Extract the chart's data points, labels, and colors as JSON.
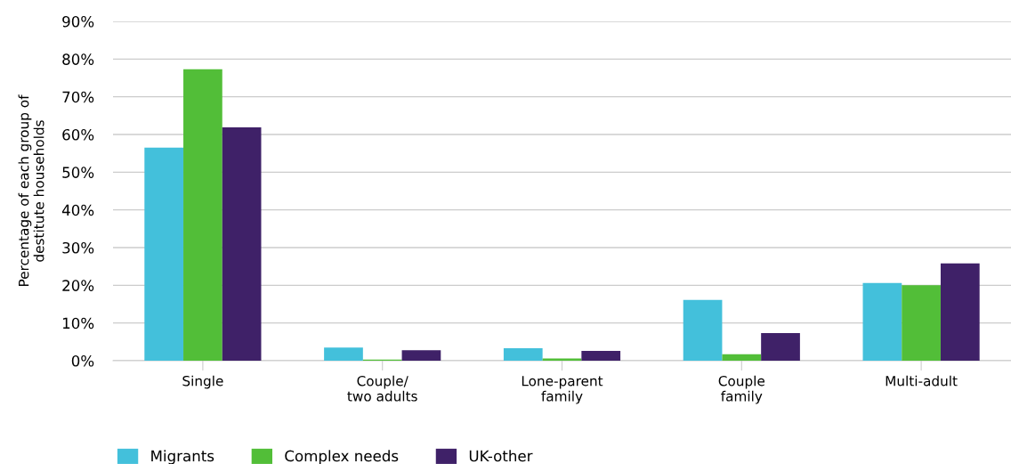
{
  "chart_data": {
    "type": "bar",
    "ylabel": "Percentage of each group of\ndestitute households",
    "categories": [
      "Single",
      "Couple/\ntwo adults",
      "Lone-parent\nfamily",
      "Couple\nfamily",
      "Multi-adult"
    ],
    "series": [
      {
        "name": "Migrants",
        "color": "#43c0db",
        "values": [
          56.5,
          3.5,
          3.3,
          16.1,
          20.6
        ]
      },
      {
        "name": "Complex needs",
        "color": "#52be38",
        "values": [
          77.3,
          0.3,
          0.6,
          1.7,
          20.0
        ]
      },
      {
        "name": "UK-other",
        "color": "#3f2168",
        "values": [
          61.9,
          2.8,
          2.6,
          7.3,
          25.8
        ]
      }
    ],
    "ylim": [
      0,
      90
    ],
    "yticks": [
      {
        "value": 0,
        "label": "0%"
      },
      {
        "value": 10,
        "label": "10%"
      },
      {
        "value": 20,
        "label": "20%"
      },
      {
        "value": 30,
        "label": "30%"
      },
      {
        "value": 40,
        "label": "40%"
      },
      {
        "value": 50,
        "label": "50%"
      },
      {
        "value": 60,
        "label": "60%"
      },
      {
        "value": 70,
        "label": "70%"
      },
      {
        "value": 80,
        "label": "80%"
      },
      {
        "value": 90,
        "label": "90%"
      }
    ],
    "grid": "y",
    "legend": "bottom left"
  }
}
